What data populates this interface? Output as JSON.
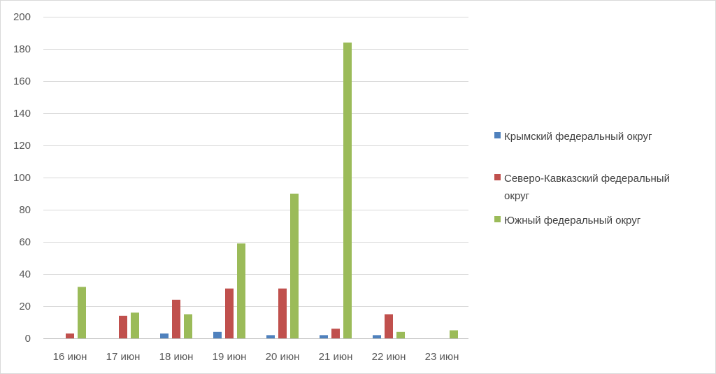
{
  "chart_data": {
    "type": "bar",
    "categories": [
      "16 июн",
      "17 июн",
      "18 июн",
      "19 июн",
      "20 июн",
      "21 июн",
      "22 июн",
      "23 июн"
    ],
    "series": [
      {
        "name": "Крымский федеральный округ",
        "color": "#4f81bd",
        "values": [
          0,
          0,
          3,
          4,
          2,
          2,
          2,
          0
        ]
      },
      {
        "name": "Северо-Кавказский федеральный округ",
        "legend_lines": [
          "Северо-Кавказский федеральный",
          "округ"
        ],
        "color": "#c0504d",
        "values": [
          3,
          14,
          24,
          31,
          31,
          6,
          15,
          0
        ]
      },
      {
        "name": "Южный федеральный округ",
        "color": "#9bbb59",
        "values": [
          32,
          16,
          15,
          59,
          90,
          184,
          4,
          5
        ]
      }
    ],
    "yticks": [
      "0",
      "20",
      "40",
      "60",
      "80",
      "100",
      "120",
      "140",
      "160",
      "180",
      "200"
    ],
    "ylim": [
      0,
      200
    ],
    "grid": true,
    "legend_position": "right"
  }
}
